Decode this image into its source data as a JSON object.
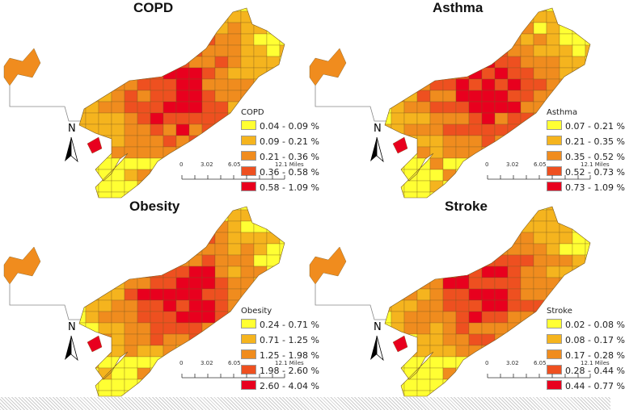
{
  "panels": [
    {
      "title": "COPD",
      "legend_title": "COPD",
      "classes": [
        "0.04 - 0.09 %",
        "0.09 - 0.21 %",
        "0.21 - 0.36 %",
        "0.36 - 0.58 %",
        "0.58 - 1.09 %"
      ]
    },
    {
      "title": "Asthma",
      "legend_title": "Asthma",
      "classes": [
        "0.07 - 0.21 %",
        "0.21 - 0.35 %",
        "0.35 - 0.52 %",
        "0.52 - 0.73 %",
        "0.73 - 1.09 %"
      ]
    },
    {
      "title": "Obesity",
      "legend_title": "Obesity",
      "classes": [
        "0.24 - 0.71 %",
        "0.71 - 1.25 %",
        "1.25 - 1.98 %",
        "1.98 - 2.60 %",
        "2.60 - 4.04 %"
      ]
    },
    {
      "title": "Stroke",
      "legend_title": "Stroke",
      "classes": [
        "0.02 - 0.08 %",
        "0.08 - 0.17 %",
        "0.17 - 0.28 %",
        "0.28 - 0.44 %",
        "0.44 - 0.77 %"
      ]
    }
  ],
  "class_colors": [
    "#ffff33",
    "#f5b41e",
    "#f08c1e",
    "#ee5020",
    "#e8001e"
  ],
  "north_label": "N",
  "scale": {
    "ticks": [
      "0",
      "3.02",
      "6.05",
      "12.1 Miles"
    ]
  }
}
